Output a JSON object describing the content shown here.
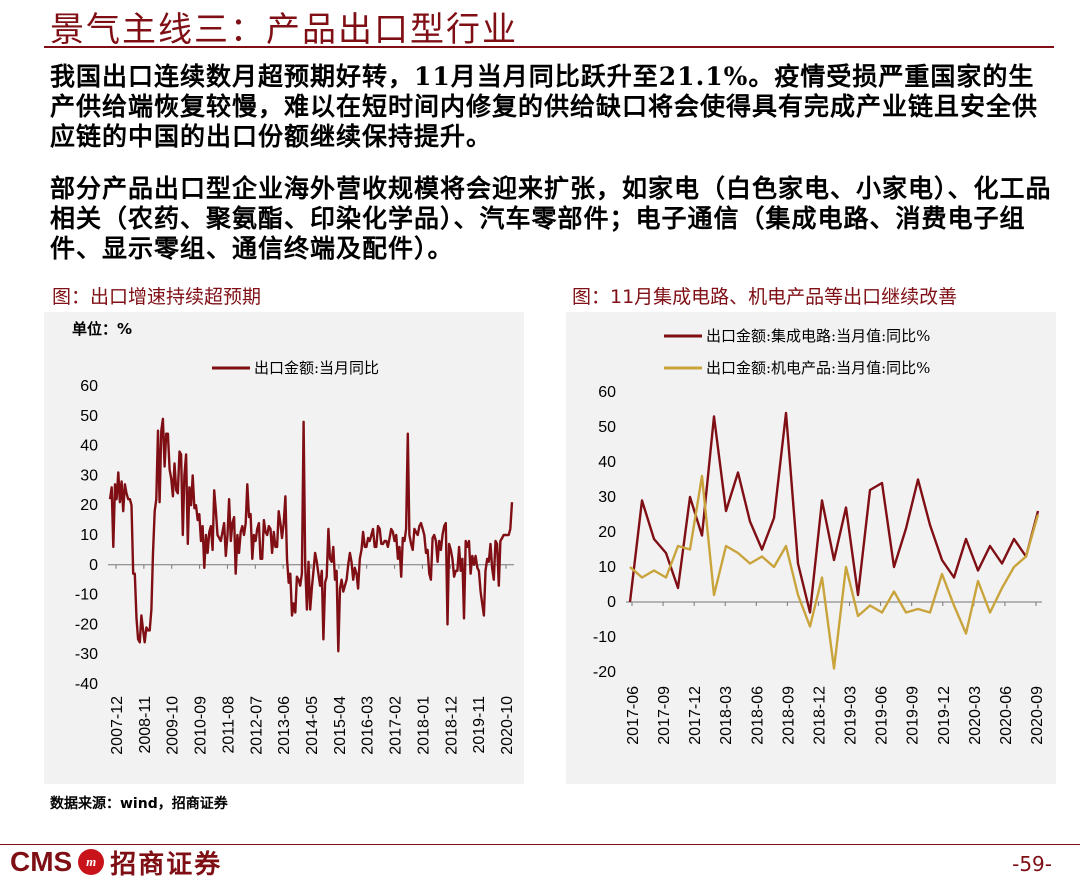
{
  "title": "景气主线三：产品出口型行业",
  "paragraphs": [
    "我国出口连续数月超预期好转，11月当月同比跃升至21.1%。疫情受损严重国家的生产供给端恢复较慢，难以在短时间内修复的供给缺口将会使得具有完成产业链且安全供应链的中国的出口份额继续保持提升。",
    "部分产品出口型企业海外营收规模将会迎来扩张，如家电（白色家电、小家电）、化工品相关（农药、聚氨酯、印染化学品）、汽车零部件；电子通信（集成电路、消费电子组件、显示零组、通信终端及配件）。"
  ],
  "figures": {
    "left_caption": "图：出口增速持续超预期",
    "right_caption": "图：11月集成电路、机电产品等出口继续改善"
  },
  "colors": {
    "dark_red": "#7f0f14",
    "gold": "#c9a43c"
  },
  "chart_data": [
    {
      "type": "line",
      "unit_label": "单位：%",
      "ylim": [
        -40,
        60
      ],
      "yticks": [
        "60",
        "50",
        "40",
        "30",
        "20",
        "10",
        "0",
        "-10",
        "-20",
        "-30",
        "-40"
      ],
      "xticks": [
        "2007-12",
        "2008-11",
        "2009-10",
        "2010-09",
        "2011-08",
        "2012-07",
        "2013-06",
        "2014-05",
        "2015-04",
        "2016-03",
        "2017-02",
        "2018-01",
        "2018-12",
        "2019-11",
        "2020-10"
      ],
      "legend_position": "top-center",
      "grid": false,
      "series": [
        {
          "name": "出口金额:当月同比",
          "color": "#7f0f14",
          "x_start": "2007-12",
          "x_end": "2020-11",
          "values": [
            22,
            26,
            6,
            27,
            22,
            31,
            21,
            28,
            18,
            27,
            24,
            22,
            22,
            20,
            -3,
            -3,
            -18,
            -25,
            -26,
            -17,
            -22,
            -26,
            -21,
            -22,
            -22,
            -15,
            4,
            18,
            22,
            45,
            21,
            45,
            49,
            33,
            44,
            44,
            32,
            29,
            23,
            34,
            25,
            24,
            38,
            37,
            10,
            30,
            37,
            7,
            26,
            20,
            30,
            19,
            20,
            15,
            17,
            8,
            13,
            -1,
            10,
            4,
            11,
            13,
            5,
            25,
            18,
            10,
            9,
            8,
            11,
            14,
            3,
            10,
            22,
            8,
            14,
            16,
            -3,
            10,
            4,
            11,
            13,
            10,
            14,
            27,
            16,
            17,
            2,
            10,
            8,
            12,
            14,
            2,
            2,
            15,
            11,
            10,
            13,
            12,
            4,
            11,
            6,
            6,
            18,
            14,
            9,
            14,
            23,
            2,
            -6,
            -3,
            -17,
            -13,
            -16,
            -4,
            -5,
            -7,
            -3,
            48,
            0,
            -15,
            1,
            -15,
            -8,
            -2,
            4,
            1,
            -3,
            -7,
            -2,
            -25,
            -6,
            -4,
            12,
            2,
            1,
            6,
            -5,
            -2,
            -29,
            -8,
            -5,
            -9,
            -7,
            -5,
            0,
            4,
            1,
            -5,
            -1,
            -3,
            -8,
            2,
            5,
            11,
            6,
            6,
            9,
            8,
            10,
            12,
            6,
            6,
            13,
            12,
            7,
            7,
            8,
            8,
            6,
            9,
            12,
            11,
            8,
            10,
            2,
            6,
            -4,
            9,
            8,
            12,
            44,
            10,
            7,
            5,
            12,
            11,
            10,
            13,
            14,
            12,
            10,
            4,
            5,
            -3,
            -5,
            9,
            10,
            8,
            1,
            8,
            5,
            10,
            13,
            14,
            -20,
            7,
            5,
            2,
            -4,
            -2,
            -2,
            6,
            -2,
            2,
            -18,
            8,
            6,
            8,
            -3,
            3,
            0,
            3,
            -1,
            -2,
            -9,
            -13,
            -17,
            -2,
            2,
            1,
            7,
            -1,
            -5,
            8,
            7,
            -7,
            8,
            9,
            10,
            10,
            10,
            10,
            12,
            21
          ],
          "note": "values sampled roughly monthly; shape approximated from chart"
        }
      ]
    },
    {
      "type": "line",
      "ylim": [
        -20,
        60
      ],
      "yticks": [
        "60",
        "50",
        "40",
        "30",
        "20",
        "10",
        "0",
        "-10",
        "-20"
      ],
      "xticks": [
        "2017-06",
        "2017-09",
        "2017-12",
        "2018-03",
        "2018-06",
        "2018-09",
        "2018-12",
        "2019-03",
        "2019-06",
        "2019-09",
        "2019-12",
        "2020-03",
        "2020-06",
        "2020-09"
      ],
      "legend_position": "top-center",
      "grid": false,
      "series": [
        {
          "name": "出口金额:集成电路:当月值:同比%",
          "color": "#7f0f14",
          "values": [
            0,
            29,
            18,
            14,
            4,
            30,
            19,
            53,
            26,
            37,
            23,
            15,
            24,
            54,
            11,
            -3,
            29,
            12,
            27,
            2,
            32,
            34,
            10,
            21,
            35,
            22,
            12,
            7,
            18,
            9,
            16,
            11,
            18,
            13,
            26
          ]
        },
        {
          "name": "出口金额:机电产品:当月值:同比%",
          "color": "#c9a43c",
          "values": [
            10,
            7,
            9,
            7,
            16,
            15,
            36,
            2,
            16,
            14,
            11,
            13,
            10,
            16,
            2,
            -7,
            7,
            -19,
            10,
            -4,
            -1,
            -3,
            3,
            -3,
            -2,
            -3,
            8,
            -1,
            -9,
            6,
            -3,
            4,
            10,
            13,
            25
          ]
        }
      ]
    }
  ],
  "source": "数据来源：wind，招商证券",
  "footer": {
    "logo_text": "CMS",
    "logo_mark": "m",
    "logo_cn": "招商证券",
    "page": "-59-"
  }
}
